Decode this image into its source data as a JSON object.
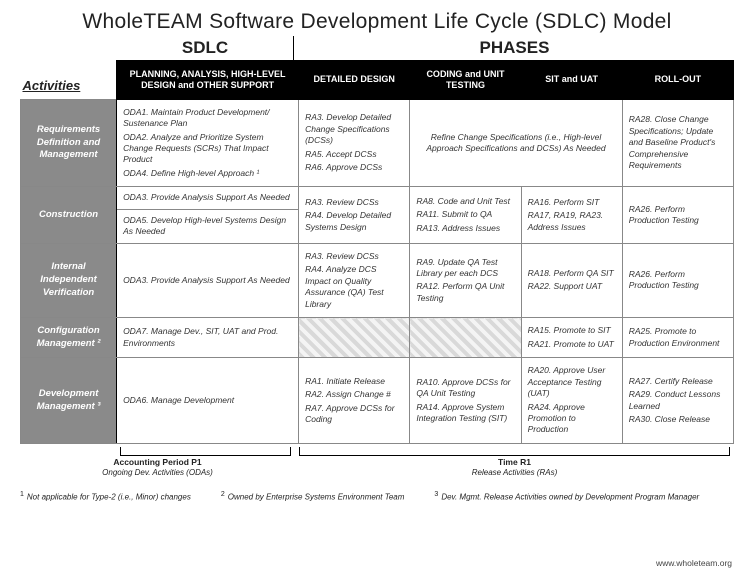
{
  "title": "WholeTEAM Software Development Life Cycle (SDLC) Model",
  "topLabels": {
    "sdlc": "SDLC",
    "phases": "PHASES"
  },
  "corner": "Activities",
  "columns": [
    "PLANNING, ANALYSIS, HIGH-LEVEL DESIGN and OTHER SUPPORT",
    "DETAILED DESIGN",
    "CODING and UNIT TESTING",
    "SIT and UAT",
    "ROLL-OUT"
  ],
  "rows": {
    "reqdef": {
      "label": "Requirements Definition and Management",
      "plan_a": "ODA1. Maintain Product Development/ Sustenance Plan",
      "plan_b": "ODA2. Analyze and Prioritize System Change Requests (SCRs) That Impact Product",
      "plan_c": "ODA4. Define High-level Approach ¹",
      "dd": [
        "RA3. Develop Detailed Change Specifications (DCSs)",
        "RA5. Accept DCSs",
        "RA6. Approve DCSs"
      ],
      "code_sit_merged": "Refine Change Specifications (i.e., High-level Approach Specifications and DCSs) As Needed",
      "roll": "RA28. Close Change Specifications; Update and Baseline Product's Comprehensive Requirements"
    },
    "constr": {
      "label": "Construction",
      "plan_a": "ODA3. Provide Analysis Support As Needed",
      "plan_b": "ODA5. Develop High-level Systems Design As Needed",
      "dd": [
        "RA3. Review DCSs",
        "RA4. Develop Detailed Systems Design"
      ],
      "code": [
        "RA8. Code and Unit Test",
        "RA11. Submit to QA",
        "RA13. Address Issues"
      ],
      "sit": [
        "RA16. Perform SIT",
        "RA17, RA19, RA23. Address Issues"
      ],
      "roll": "RA26. Perform Production Testing"
    },
    "iiv": {
      "label": "Internal Independent Verification",
      "plan": "ODA3. Provide Analysis Support As Needed",
      "dd": [
        "RA3. Review DCSs",
        "RA4. Analyze DCS Impact on Quality Assurance (QA) Test Library"
      ],
      "code": [
        "RA9. Update QA Test Library per each DCS",
        "RA12. Perform QA Unit Testing"
      ],
      "sit": [
        "RA18. Perform QA SIT",
        "RA22. Support UAT"
      ],
      "roll": "RA26. Perform Production Testing"
    },
    "config": {
      "label": "Configuration Management ²",
      "plan": "ODA7. Manage Dev., SIT, UAT and Prod. Environments",
      "sit": [
        "RA15. Promote to SIT",
        "RA21. Promote to UAT"
      ],
      "roll": "RA25. Promote to Production Environment"
    },
    "devmgmt": {
      "label": "Development Management ³",
      "plan": "ODA6. Manage Development",
      "dd": [
        "RA1. Initiate Release",
        "RA2. Assign Change #",
        "RA7. Approve DCSs for Coding"
      ],
      "code": [
        "RA10. Approve DCSs for QA Unit Testing",
        "RA14. Approve System Integration Testing (SIT)"
      ],
      "sit": [
        "RA20. Approve User Acceptance Testing (UAT)",
        "RA24. Approve Promotion to Production"
      ],
      "roll": [
        "RA27. Certify Release",
        "RA29. Conduct Lessons Learned",
        "RA30. Close Release"
      ]
    }
  },
  "brackets": {
    "b1_caption": "Accounting Period P1",
    "b1_sub": "Ongoing Dev. Activities (ODAs)",
    "b2_caption": "Time R1",
    "b2_sub": "Release Activities (RAs)"
  },
  "footnotes": {
    "f1": "Not applicable for Type-2 (i.e., Minor) changes",
    "f2": "Owned by Enterprise Systems Environment Team",
    "f3": "Dev. Mgmt. Release Activities owned by Development Program Manager"
  },
  "url": "www.wholeteam.org"
}
